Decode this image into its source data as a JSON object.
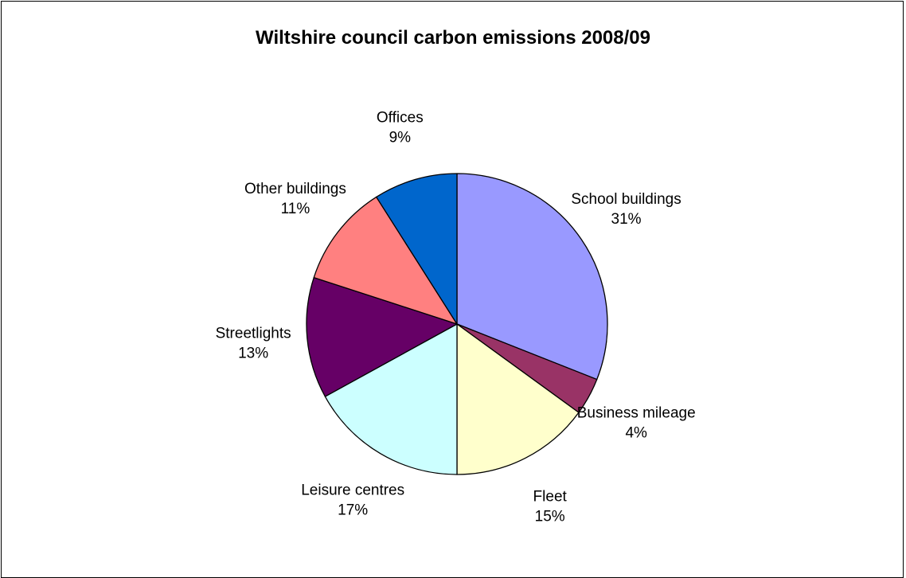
{
  "chart_data": {
    "type": "pie",
    "title": "Wiltshire council carbon emissions 2008/09",
    "start_angle_deg": 0,
    "direction": "clockwise",
    "legend": "none",
    "slices": [
      {
        "label": "School buildings",
        "value": 31,
        "value_label": "31%",
        "color": "#9999FF"
      },
      {
        "label": "Business mileage",
        "value": 4,
        "value_label": "4%",
        "color": "#993366"
      },
      {
        "label": "Fleet",
        "value": 15,
        "value_label": "15%",
        "color": "#FFFFCC"
      },
      {
        "label": "Leisure centres",
        "value": 17,
        "value_label": "17%",
        "color": "#CCFFFF"
      },
      {
        "label": "Streetlights",
        "value": 13,
        "value_label": "13%",
        "color": "#660066"
      },
      {
        "label": "Other buildings",
        "value": 11,
        "value_label": "11%",
        "color": "#FF8080"
      },
      {
        "label": "Offices",
        "value": 9,
        "value_label": "9%",
        "color": "#0066CC"
      }
    ]
  }
}
